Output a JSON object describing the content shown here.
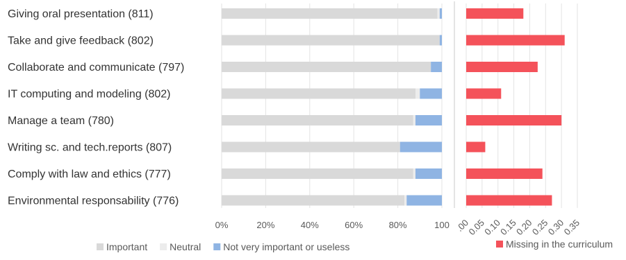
{
  "chart_data": [
    {
      "type": "bar",
      "orientation": "horizontal",
      "stacked": true,
      "categories": [
        "Giving oral presentation (811)",
        "Take and give feedback (802)",
        "Collaborate and communicate (797)",
        "IT computing and modeling (802)",
        "Manage a team (780)",
        "Writing sc. and tech.reports (807)",
        "Comply with law and ethics (777)",
        "Environmental responsability (776)"
      ],
      "series": [
        {
          "name": "Important",
          "color": "#d9d9d9",
          "values": [
            98,
            99,
            95,
            88,
            87,
            81,
            87,
            83
          ]
        },
        {
          "name": "Neutral",
          "color": "#ececec",
          "values": [
            1,
            0,
            0,
            2,
            1,
            0,
            1,
            1
          ]
        },
        {
          "name": "Not very important or useless",
          "color": "#8fb4e3",
          "values": [
            1,
            1,
            5,
            10,
            12,
            19,
            12,
            16
          ]
        }
      ],
      "x_ticks": [
        "0%",
        "20%",
        "40%",
        "60%",
        "80%",
        "100"
      ],
      "xlim": [
        0,
        100
      ],
      "grid": true,
      "legend": "bottom"
    },
    {
      "type": "bar",
      "orientation": "horizontal",
      "categories": [
        "Giving oral presentation (811)",
        "Take and give feedback (802)",
        "Collaborate and communicate (797)",
        "IT computing and modeling (802)",
        "Manage a team (780)",
        "Writing sc. and tech.reports (807)",
        "Comply with law and ethics (777)",
        "Environmental responsability (776)"
      ],
      "series": [
        {
          "name": "Missing in the curriculum",
          "color": "#f4525a",
          "values": [
            0.18,
            0.31,
            0.225,
            0.11,
            0.3,
            0.06,
            0.24,
            0.27
          ]
        }
      ],
      "x_ticks": [
        ".00",
        "0.05",
        "0.10",
        "0.15",
        "0.20",
        "0.25",
        "0.30",
        "0.35"
      ],
      "xlim": [
        0,
        0.35
      ],
      "grid": true,
      "legend": "bottom-right"
    }
  ]
}
